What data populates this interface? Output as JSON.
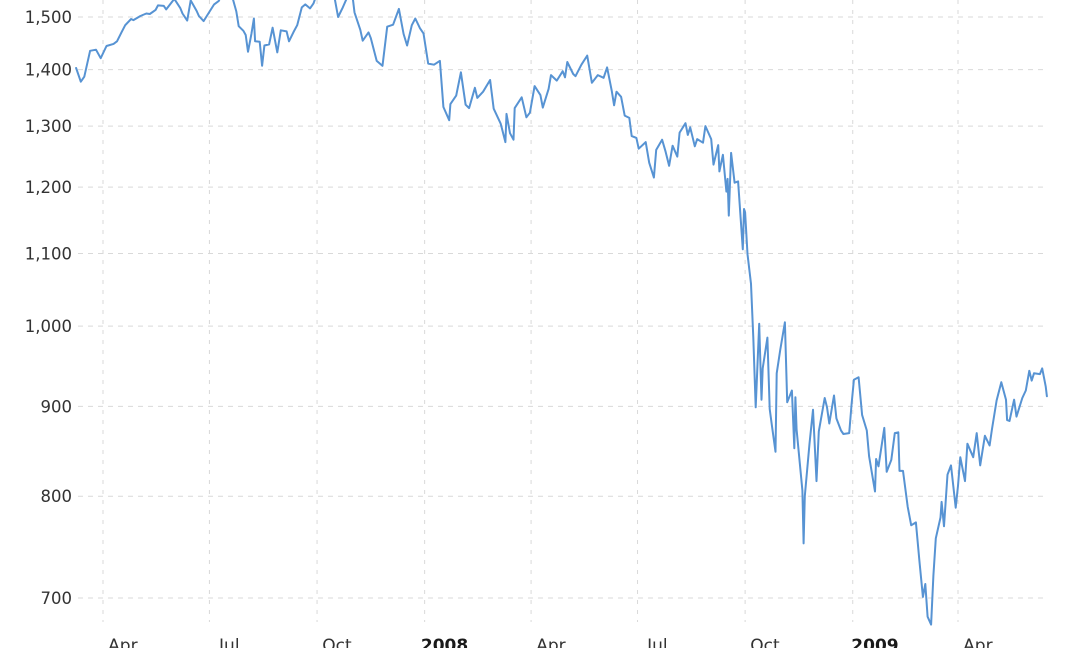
{
  "chart_data": {
    "type": "line",
    "grid": true,
    "legend": "none",
    "y_axis": {
      "scale": "log",
      "ticks": [
        700,
        800,
        900,
        1000,
        1100,
        1200,
        1300,
        1400,
        1500
      ],
      "tick_labels": [
        "700",
        "800",
        "900",
        "1,000",
        "1,100",
        "1,200",
        "1,300",
        "1,400",
        "1,500"
      ]
    },
    "x_axis": {
      "gridline_dates": [
        "2007-04-01",
        "2007-07-01",
        "2007-10-01",
        "2008-01-01",
        "2008-04-01",
        "2008-07-01",
        "2008-10-01",
        "2009-01-01",
        "2009-04-01"
      ],
      "labels": [
        {
          "text": "Apr",
          "date": "2007-04-18",
          "bold": false
        },
        {
          "text": "Jul",
          "date": "2007-07-18",
          "bold": false
        },
        {
          "text": "Oct",
          "date": "2007-10-18",
          "bold": false
        },
        {
          "text": "2008",
          "date": "2008-01-18",
          "bold": true
        },
        {
          "text": "Apr",
          "date": "2008-04-18",
          "bold": false
        },
        {
          "text": "Jul",
          "date": "2008-07-18",
          "bold": false
        },
        {
          "text": "Oct",
          "date": "2008-10-18",
          "bold": false
        },
        {
          "text": "2009",
          "date": "2009-01-20",
          "bold": true
        },
        {
          "text": "Apr",
          "date": "2009-04-18",
          "bold": false
        }
      ]
    },
    "series": [
      {
        "color": "#5793d3",
        "points": [
          [
            "2007-03-09",
            1403
          ],
          [
            "2007-03-13",
            1378
          ],
          [
            "2007-03-16",
            1387
          ],
          [
            "2007-03-21",
            1435
          ],
          [
            "2007-03-26",
            1437
          ],
          [
            "2007-03-30",
            1421
          ],
          [
            "2007-04-04",
            1444
          ],
          [
            "2007-04-10",
            1448
          ],
          [
            "2007-04-13",
            1453
          ],
          [
            "2007-04-17",
            1471
          ],
          [
            "2007-04-20",
            1484
          ],
          [
            "2007-04-25",
            1496
          ],
          [
            "2007-04-27",
            1494
          ],
          [
            "2007-05-03",
            1502
          ],
          [
            "2007-05-08",
            1507
          ],
          [
            "2007-05-11",
            1506
          ],
          [
            "2007-05-16",
            1514
          ],
          [
            "2007-05-18",
            1523
          ],
          [
            "2007-05-23",
            1522
          ],
          [
            "2007-05-25",
            1515
          ],
          [
            "2007-05-30",
            1530
          ],
          [
            "2007-06-01",
            1536
          ],
          [
            "2007-06-06",
            1518
          ],
          [
            "2007-06-08",
            1507
          ],
          [
            "2007-06-12",
            1493
          ],
          [
            "2007-06-15",
            1533
          ],
          [
            "2007-06-20",
            1512
          ],
          [
            "2007-06-22",
            1502
          ],
          [
            "2007-06-26",
            1492
          ],
          [
            "2007-06-29",
            1503
          ],
          [
            "2007-07-05",
            1525
          ],
          [
            "2007-07-09",
            1532
          ],
          [
            "2007-07-13",
            1553
          ],
          [
            "2007-07-16",
            1549
          ],
          [
            "2007-07-19",
            1553
          ],
          [
            "2007-07-24",
            1511
          ],
          [
            "2007-07-26",
            1482
          ],
          [
            "2007-07-30",
            1473
          ],
          [
            "2007-08-01",
            1465
          ],
          [
            "2007-08-03",
            1433
          ],
          [
            "2007-08-06",
            1468
          ],
          [
            "2007-08-08",
            1497
          ],
          [
            "2007-08-09",
            1453
          ],
          [
            "2007-08-13",
            1452
          ],
          [
            "2007-08-15",
            1407
          ],
          [
            "2007-08-17",
            1445
          ],
          [
            "2007-08-21",
            1447
          ],
          [
            "2007-08-24",
            1479
          ],
          [
            "2007-08-28",
            1432
          ],
          [
            "2007-08-31",
            1474
          ],
          [
            "2007-09-05",
            1472
          ],
          [
            "2007-09-07",
            1453
          ],
          [
            "2007-09-11",
            1471
          ],
          [
            "2007-09-14",
            1484
          ],
          [
            "2007-09-18",
            1519
          ],
          [
            "2007-09-21",
            1525
          ],
          [
            "2007-09-25",
            1517
          ],
          [
            "2007-09-28",
            1527
          ],
          [
            "2007-10-01",
            1547
          ],
          [
            "2007-10-05",
            1557
          ],
          [
            "2007-10-09",
            1565
          ],
          [
            "2007-10-12",
            1562
          ],
          [
            "2007-10-16",
            1538
          ],
          [
            "2007-10-19",
            1500
          ],
          [
            "2007-10-23",
            1519
          ],
          [
            "2007-10-26",
            1535
          ],
          [
            "2007-10-31",
            1549
          ],
          [
            "2007-11-02",
            1509
          ],
          [
            "2007-11-07",
            1475
          ],
          [
            "2007-11-09",
            1454
          ],
          [
            "2007-11-14",
            1470
          ],
          [
            "2007-11-16",
            1459
          ],
          [
            "2007-11-21",
            1416
          ],
          [
            "2007-11-26",
            1407
          ],
          [
            "2007-11-30",
            1481
          ],
          [
            "2007-12-05",
            1485
          ],
          [
            "2007-12-10",
            1516
          ],
          [
            "2007-12-14",
            1467
          ],
          [
            "2007-12-17",
            1445
          ],
          [
            "2007-12-21",
            1484
          ],
          [
            "2007-12-24",
            1497
          ],
          [
            "2007-12-28",
            1478
          ],
          [
            "2007-12-31",
            1468
          ],
          [
            "2008-01-04",
            1411
          ],
          [
            "2008-01-09",
            1409
          ],
          [
            "2008-01-14",
            1416
          ],
          [
            "2008-01-17",
            1333
          ],
          [
            "2008-01-22",
            1310
          ],
          [
            "2008-01-23",
            1338
          ],
          [
            "2008-01-28",
            1353
          ],
          [
            "2008-02-01",
            1395
          ],
          [
            "2008-02-05",
            1337
          ],
          [
            "2008-02-08",
            1331
          ],
          [
            "2008-02-13",
            1367
          ],
          [
            "2008-02-15",
            1349
          ],
          [
            "2008-02-20",
            1360
          ],
          [
            "2008-02-26",
            1381
          ],
          [
            "2008-02-29",
            1330
          ],
          [
            "2008-03-06",
            1304
          ],
          [
            "2008-03-10",
            1273
          ],
          [
            "2008-03-11",
            1321
          ],
          [
            "2008-03-14",
            1288
          ],
          [
            "2008-03-17",
            1277
          ],
          [
            "2008-03-18",
            1331
          ],
          [
            "2008-03-24",
            1350
          ],
          [
            "2008-03-28",
            1315
          ],
          [
            "2008-03-31",
            1323
          ],
          [
            "2008-04-04",
            1370
          ],
          [
            "2008-04-09",
            1354
          ],
          [
            "2008-04-11",
            1332
          ],
          [
            "2008-04-16",
            1365
          ],
          [
            "2008-04-18",
            1390
          ],
          [
            "2008-04-23",
            1380
          ],
          [
            "2008-04-28",
            1397
          ],
          [
            "2008-04-30",
            1386
          ],
          [
            "2008-05-02",
            1414
          ],
          [
            "2008-05-07",
            1392
          ],
          [
            "2008-05-09",
            1388
          ],
          [
            "2008-05-14",
            1409
          ],
          [
            "2008-05-19",
            1426
          ],
          [
            "2008-05-23",
            1376
          ],
          [
            "2008-05-28",
            1390
          ],
          [
            "2008-06-02",
            1385
          ],
          [
            "2008-06-05",
            1404
          ],
          [
            "2008-06-09",
            1361
          ],
          [
            "2008-06-11",
            1336
          ],
          [
            "2008-06-13",
            1360
          ],
          [
            "2008-06-17",
            1351
          ],
          [
            "2008-06-20",
            1318
          ],
          [
            "2008-06-24",
            1314
          ],
          [
            "2008-06-26",
            1283
          ],
          [
            "2008-06-30",
            1280
          ],
          [
            "2008-07-02",
            1262
          ],
          [
            "2008-07-08",
            1273
          ],
          [
            "2008-07-11",
            1239
          ],
          [
            "2008-07-15",
            1215
          ],
          [
            "2008-07-17",
            1260
          ],
          [
            "2008-07-22",
            1277
          ],
          [
            "2008-07-25",
            1257
          ],
          [
            "2008-07-28",
            1234
          ],
          [
            "2008-07-31",
            1267
          ],
          [
            "2008-08-04",
            1249
          ],
          [
            "2008-08-06",
            1289
          ],
          [
            "2008-08-11",
            1305
          ],
          [
            "2008-08-13",
            1285
          ],
          [
            "2008-08-15",
            1298
          ],
          [
            "2008-08-19",
            1266
          ],
          [
            "2008-08-21",
            1278
          ],
          [
            "2008-08-26",
            1272
          ],
          [
            "2008-08-28",
            1300
          ],
          [
            "2008-09-02",
            1278
          ],
          [
            "2008-09-04",
            1236
          ],
          [
            "2008-09-08",
            1268
          ],
          [
            "2008-09-09",
            1225
          ],
          [
            "2008-09-12",
            1252
          ],
          [
            "2008-09-15",
            1193
          ],
          [
            "2008-09-16",
            1213
          ],
          [
            "2008-09-17",
            1156
          ],
          [
            "2008-09-19",
            1255
          ],
          [
            "2008-09-22",
            1207
          ],
          [
            "2008-09-25",
            1209
          ],
          [
            "2008-09-29",
            1106
          ],
          [
            "2008-09-30",
            1166
          ],
          [
            "2008-10-01",
            1161
          ],
          [
            "2008-10-03",
            1099
          ],
          [
            "2008-10-06",
            1057
          ],
          [
            "2008-10-08",
            985
          ],
          [
            "2008-10-10",
            899
          ],
          [
            "2008-10-13",
            1003
          ],
          [
            "2008-10-15",
            908
          ],
          [
            "2008-10-16",
            946
          ],
          [
            "2008-10-20",
            985
          ],
          [
            "2008-10-22",
            897
          ],
          [
            "2008-10-24",
            877
          ],
          [
            "2008-10-27",
            848
          ],
          [
            "2008-10-28",
            940
          ],
          [
            "2008-10-31",
            969
          ],
          [
            "2008-11-04",
            1005
          ],
          [
            "2008-11-06",
            905
          ],
          [
            "2008-11-10",
            919
          ],
          [
            "2008-11-12",
            852
          ],
          [
            "2008-11-13",
            911
          ],
          [
            "2008-11-14",
            873
          ],
          [
            "2008-11-19",
            806
          ],
          [
            "2008-11-20",
            752
          ],
          [
            "2008-11-21",
            800
          ],
          [
            "2008-11-25",
            857
          ],
          [
            "2008-11-28",
            896
          ],
          [
            "2008-12-01",
            816
          ],
          [
            "2008-12-03",
            871
          ],
          [
            "2008-12-08",
            910
          ],
          [
            "2008-12-10",
            899
          ],
          [
            "2008-12-12",
            880
          ],
          [
            "2008-12-16",
            913
          ],
          [
            "2008-12-18",
            886
          ],
          [
            "2008-12-22",
            872
          ],
          [
            "2008-12-24",
            868
          ],
          [
            "2008-12-29",
            869
          ],
          [
            "2008-12-31",
            903
          ],
          [
            "2009-01-02",
            932
          ],
          [
            "2009-01-06",
            935
          ],
          [
            "2009-01-09",
            890
          ],
          [
            "2009-01-13",
            872
          ],
          [
            "2009-01-15",
            843
          ],
          [
            "2009-01-20",
            805
          ],
          [
            "2009-01-21",
            840
          ],
          [
            "2009-01-23",
            832
          ],
          [
            "2009-01-28",
            875
          ],
          [
            "2009-01-30",
            826
          ],
          [
            "2009-02-03",
            839
          ],
          [
            "2009-02-06",
            869
          ],
          [
            "2009-02-09",
            870
          ],
          [
            "2009-02-10",
            827
          ],
          [
            "2009-02-13",
            827
          ],
          [
            "2009-02-17",
            789
          ],
          [
            "2009-02-20",
            770
          ],
          [
            "2009-02-24",
            773
          ],
          [
            "2009-02-27",
            735
          ],
          [
            "2009-03-02",
            701
          ],
          [
            "2009-03-04",
            713
          ],
          [
            "2009-03-06",
            683
          ],
          [
            "2009-03-09",
            676
          ],
          [
            "2009-03-11",
            721
          ],
          [
            "2009-03-13",
            757
          ],
          [
            "2009-03-17",
            778
          ],
          [
            "2009-03-18",
            794
          ],
          [
            "2009-03-20",
            769
          ],
          [
            "2009-03-23",
            823
          ],
          [
            "2009-03-26",
            833
          ],
          [
            "2009-03-30",
            788
          ],
          [
            "2009-04-01",
            811
          ],
          [
            "2009-04-03",
            842
          ],
          [
            "2009-04-07",
            816
          ],
          [
            "2009-04-09",
            857
          ],
          [
            "2009-04-14",
            842
          ],
          [
            "2009-04-17",
            869
          ],
          [
            "2009-04-20",
            833
          ],
          [
            "2009-04-24",
            866
          ],
          [
            "2009-04-28",
            855
          ],
          [
            "2009-04-30",
            873
          ],
          [
            "2009-05-04",
            907
          ],
          [
            "2009-05-08",
            929
          ],
          [
            "2009-05-12",
            908
          ],
          [
            "2009-05-13",
            884
          ],
          [
            "2009-05-15",
            883
          ],
          [
            "2009-05-19",
            908
          ],
          [
            "2009-05-21",
            888
          ],
          [
            "2009-05-26",
            910
          ],
          [
            "2009-05-29",
            919
          ],
          [
            "2009-06-01",
            943
          ],
          [
            "2009-06-03",
            931
          ],
          [
            "2009-06-05",
            940
          ],
          [
            "2009-06-10",
            939
          ],
          [
            "2009-06-12",
            946
          ],
          [
            "2009-06-15",
            924
          ],
          [
            "2009-06-16",
            912
          ]
        ]
      }
    ]
  }
}
